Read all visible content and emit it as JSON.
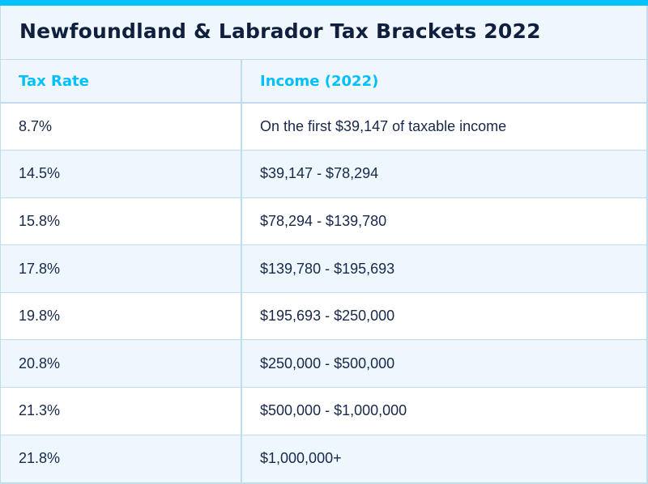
{
  "colors": {
    "accent": "#00C2FF",
    "title_text": "#0F1F3D",
    "header_text": "#00BFFF",
    "body_text": "#18284A",
    "band_background": "#EFF7FD",
    "alt_row_background": "#EEF7FE",
    "border": "#BFDDEE"
  },
  "title": "Newfoundland & Labrador Tax Brackets 2022",
  "table": {
    "headers": [
      "Tax Rate",
      "Income (2022)"
    ],
    "rows": [
      {
        "rate": "8.7%",
        "income": "On the first $39,147 of taxable income"
      },
      {
        "rate": "14.5%",
        "income": "$39,147 - $78,294"
      },
      {
        "rate": "15.8%",
        "income": "$78,294 - $139,780"
      },
      {
        "rate": "17.8%",
        "income": "$139,780 - $195,693"
      },
      {
        "rate": "19.8%",
        "income": "$195,693 - $250,000"
      },
      {
        "rate": "20.8%",
        "income": "$250,000 - $500,000"
      },
      {
        "rate": "21.3%",
        "income": "$500,000 - $1,000,000"
      },
      {
        "rate": "21.8%",
        "income": "$1,000,000+"
      }
    ]
  }
}
